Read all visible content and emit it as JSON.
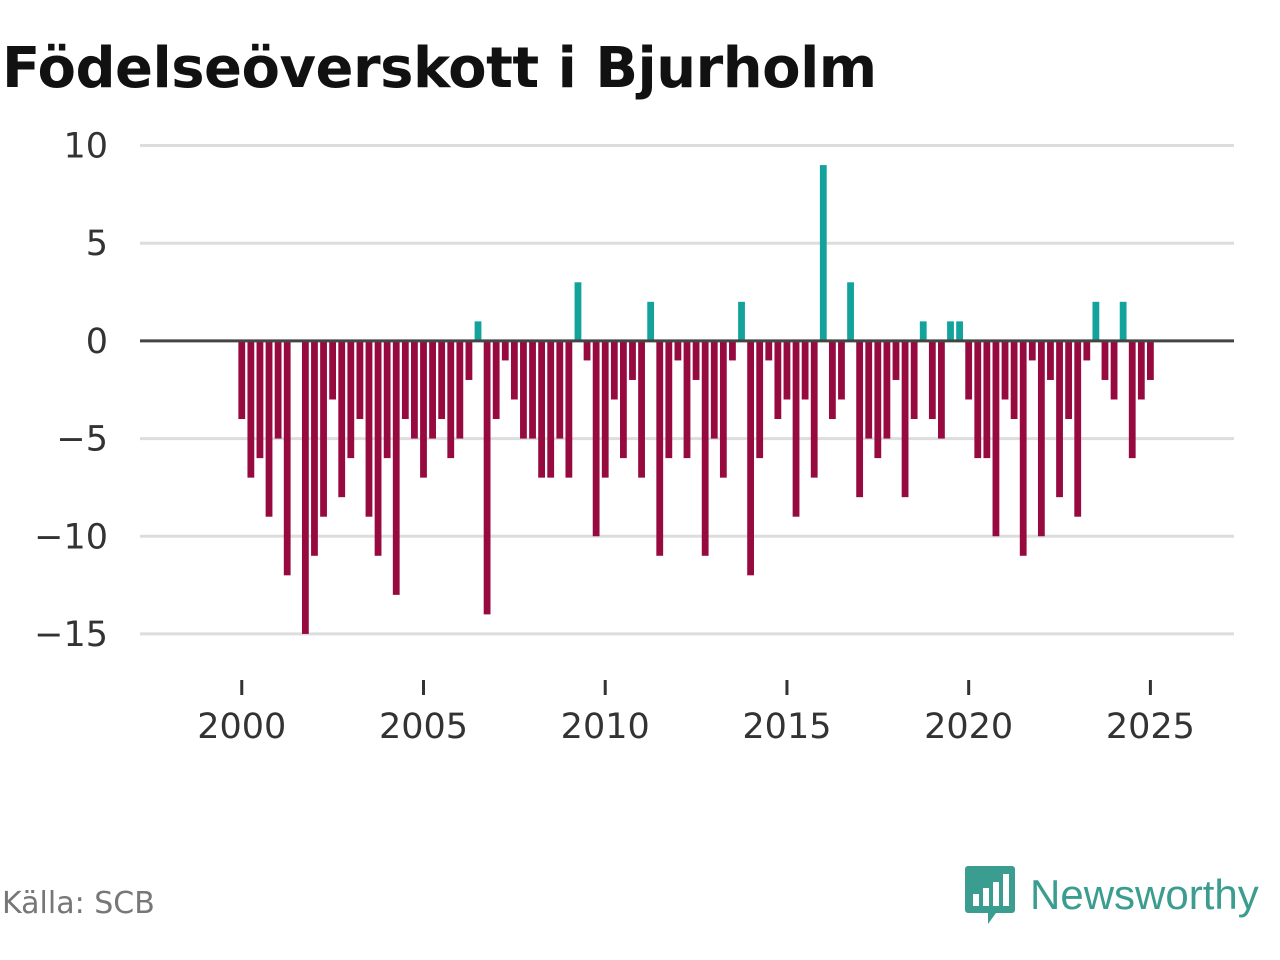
{
  "chart_data": {
    "type": "bar",
    "title": "Födelseöverskott i Bjurholm",
    "xlabel": "",
    "ylabel": "",
    "ylim": [
      -17,
      11
    ],
    "yticks": [
      10,
      5,
      0,
      -5,
      -10,
      -15
    ],
    "ytick_labels": [
      "10",
      "5",
      "0",
      "−5",
      "−10",
      "−15"
    ],
    "xlim": [
      1997.2,
      2027.3
    ],
    "xticks": [
      2000,
      2005,
      2010,
      2015,
      2020,
      2025
    ],
    "xtick_labels": [
      "2000",
      "2005",
      "2010",
      "2015",
      "2020",
      "2025"
    ],
    "period": "quarterly",
    "start": 2000.0,
    "values": [
      -4,
      -7,
      -6,
      -9,
      -5,
      -12,
      0,
      -15,
      -11,
      -9,
      -3,
      -8,
      -6,
      -4,
      -9,
      -11,
      -6,
      -13,
      -4,
      -5,
      -7,
      -5,
      -4,
      -6,
      -5,
      -2,
      1,
      -14,
      -4,
      -1,
      -3,
      -5,
      -5,
      -7,
      -7,
      -5,
      -7,
      3,
      -1,
      -10,
      -7,
      -3,
      -6,
      -2,
      -7,
      2,
      -11,
      -6,
      -1,
      -6,
      -2,
      -11,
      -5,
      -7,
      -1,
      2,
      -12,
      -6,
      -1,
      -4,
      -3,
      -9,
      -3,
      -7,
      9,
      -4,
      -3,
      3,
      -8,
      -5,
      -6,
      -5,
      -2,
      -8,
      -4,
      1,
      -4,
      -5,
      1,
      1,
      -3,
      -6,
      -6,
      -10,
      -3,
      -4,
      -11,
      -1,
      -10,
      -2,
      -8,
      -4,
      -9,
      -1,
      2,
      -2,
      -3,
      2,
      -6,
      -3,
      -2
    ],
    "colors": {
      "positive": "#13a39c",
      "negative": "#960a3f",
      "grid": "#dddddd",
      "zero_line": "#444444"
    }
  },
  "footer": {
    "source": "Källa: SCB",
    "brand": "Newsworthy"
  },
  "brand_color": "#3a9d8f"
}
